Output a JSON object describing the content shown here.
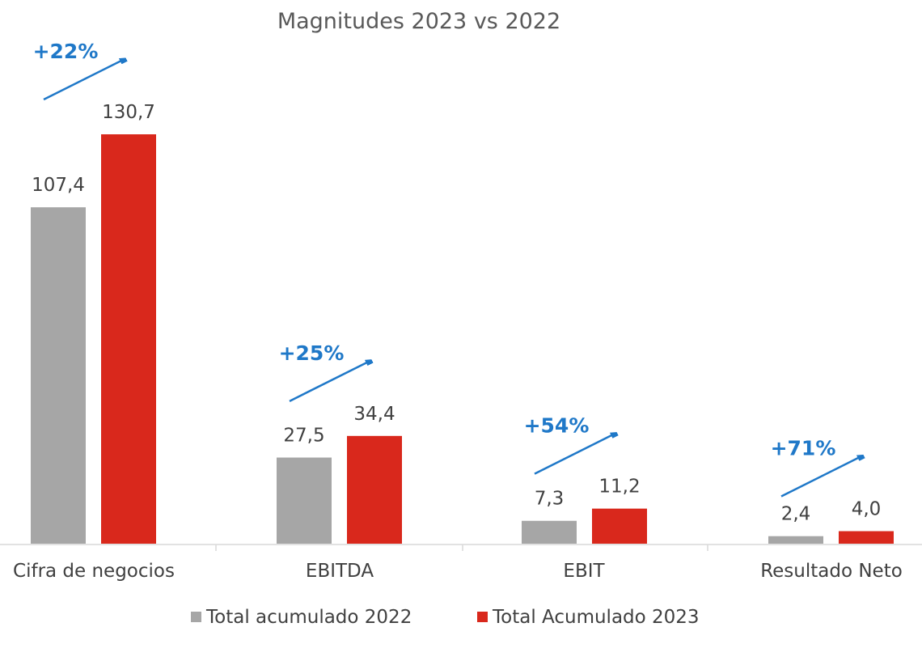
{
  "chart_data": {
    "type": "bar",
    "title": "Magnitudes 2023 vs 2022",
    "xlabel": "",
    "ylabel": "",
    "categories": [
      "Cifra de negocios",
      "EBITDA",
      "EBIT",
      "Resultado Neto"
    ],
    "series": [
      {
        "name": "Total acumulado 2022",
        "color": "#a6a6a6",
        "values": [
          107.4,
          27.5,
          7.3,
          2.4
        ],
        "labels": [
          "107,4",
          "27,5",
          "7,3",
          "2,4"
        ]
      },
      {
        "name": "Total Acumulado 2023",
        "color": "#d9281c",
        "values": [
          130.7,
          34.4,
          11.2,
          4.0
        ],
        "labels": [
          "130,7",
          "34,4",
          "11,2",
          "4,0"
        ]
      }
    ],
    "annotations": [
      "+22%",
      "+25%",
      "+54%",
      "+71%"
    ],
    "annotation_color": "#1f78c8",
    "ylim": [
      0,
      130.7
    ],
    "grid": false,
    "legend": "bottom"
  }
}
